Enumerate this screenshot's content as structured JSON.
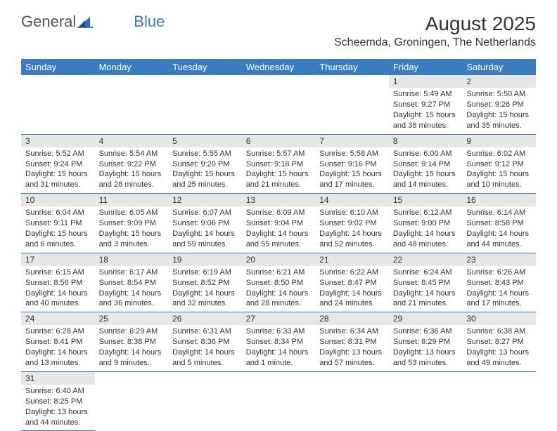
{
  "logo": {
    "text1": "General",
    "text2": "Blue"
  },
  "title": "August 2025",
  "subtitle": "Scheemda, Groningen, The Netherlands",
  "colors": {
    "header_bg": "#3b7bbf",
    "header_fg": "#ffffff",
    "daynum_bg": "#e6e6e6",
    "text": "#333333",
    "row_border": "#3b7bbf"
  },
  "day_headers": [
    "Sunday",
    "Monday",
    "Tuesday",
    "Wednesday",
    "Thursday",
    "Friday",
    "Saturday"
  ],
  "weeks": [
    [
      null,
      null,
      null,
      null,
      null,
      {
        "n": "1",
        "sr": "5:49 AM",
        "ss": "9:27 PM",
        "dl": "15 hours and 38 minutes."
      },
      {
        "n": "2",
        "sr": "5:50 AM",
        "ss": "9:26 PM",
        "dl": "15 hours and 35 minutes."
      }
    ],
    [
      {
        "n": "3",
        "sr": "5:52 AM",
        "ss": "9:24 PM",
        "dl": "15 hours and 31 minutes."
      },
      {
        "n": "4",
        "sr": "5:54 AM",
        "ss": "9:22 PM",
        "dl": "15 hours and 28 minutes."
      },
      {
        "n": "5",
        "sr": "5:55 AM",
        "ss": "9:20 PM",
        "dl": "15 hours and 25 minutes."
      },
      {
        "n": "6",
        "sr": "5:57 AM",
        "ss": "9:18 PM",
        "dl": "15 hours and 21 minutes."
      },
      {
        "n": "7",
        "sr": "5:58 AM",
        "ss": "9:16 PM",
        "dl": "15 hours and 17 minutes."
      },
      {
        "n": "8",
        "sr": "6:00 AM",
        "ss": "9:14 PM",
        "dl": "15 hours and 14 minutes."
      },
      {
        "n": "9",
        "sr": "6:02 AM",
        "ss": "9:12 PM",
        "dl": "15 hours and 10 minutes."
      }
    ],
    [
      {
        "n": "10",
        "sr": "6:04 AM",
        "ss": "9:11 PM",
        "dl": "15 hours and 6 minutes."
      },
      {
        "n": "11",
        "sr": "6:05 AM",
        "ss": "9:09 PM",
        "dl": "15 hours and 3 minutes."
      },
      {
        "n": "12",
        "sr": "6:07 AM",
        "ss": "9:06 PM",
        "dl": "14 hours and 59 minutes."
      },
      {
        "n": "13",
        "sr": "6:09 AM",
        "ss": "9:04 PM",
        "dl": "14 hours and 55 minutes."
      },
      {
        "n": "14",
        "sr": "6:10 AM",
        "ss": "9:02 PM",
        "dl": "14 hours and 52 minutes."
      },
      {
        "n": "15",
        "sr": "6:12 AM",
        "ss": "9:00 PM",
        "dl": "14 hours and 48 minutes."
      },
      {
        "n": "16",
        "sr": "6:14 AM",
        "ss": "8:58 PM",
        "dl": "14 hours and 44 minutes."
      }
    ],
    [
      {
        "n": "17",
        "sr": "6:15 AM",
        "ss": "8:56 PM",
        "dl": "14 hours and 40 minutes."
      },
      {
        "n": "18",
        "sr": "6:17 AM",
        "ss": "8:54 PM",
        "dl": "14 hours and 36 minutes."
      },
      {
        "n": "19",
        "sr": "6:19 AM",
        "ss": "8:52 PM",
        "dl": "14 hours and 32 minutes."
      },
      {
        "n": "20",
        "sr": "6:21 AM",
        "ss": "8:50 PM",
        "dl": "14 hours and 28 minutes."
      },
      {
        "n": "21",
        "sr": "6:22 AM",
        "ss": "8:47 PM",
        "dl": "14 hours and 24 minutes."
      },
      {
        "n": "22",
        "sr": "6:24 AM",
        "ss": "8:45 PM",
        "dl": "14 hours and 21 minutes."
      },
      {
        "n": "23",
        "sr": "6:26 AM",
        "ss": "8:43 PM",
        "dl": "14 hours and 17 minutes."
      }
    ],
    [
      {
        "n": "24",
        "sr": "6:28 AM",
        "ss": "8:41 PM",
        "dl": "14 hours and 13 minutes."
      },
      {
        "n": "25",
        "sr": "6:29 AM",
        "ss": "8:38 PM",
        "dl": "14 hours and 9 minutes."
      },
      {
        "n": "26",
        "sr": "6:31 AM",
        "ss": "8:36 PM",
        "dl": "14 hours and 5 minutes."
      },
      {
        "n": "27",
        "sr": "6:33 AM",
        "ss": "8:34 PM",
        "dl": "14 hours and 1 minute."
      },
      {
        "n": "28",
        "sr": "6:34 AM",
        "ss": "8:31 PM",
        "dl": "13 hours and 57 minutes."
      },
      {
        "n": "29",
        "sr": "6:36 AM",
        "ss": "8:29 PM",
        "dl": "13 hours and 53 minutes."
      },
      {
        "n": "30",
        "sr": "6:38 AM",
        "ss": "8:27 PM",
        "dl": "13 hours and 49 minutes."
      }
    ],
    [
      {
        "n": "31",
        "sr": "6:40 AM",
        "ss": "8:25 PM",
        "dl": "13 hours and 44 minutes."
      },
      null,
      null,
      null,
      null,
      null,
      null
    ]
  ],
  "labels": {
    "sunrise": "Sunrise: ",
    "sunset": "Sunset: ",
    "daylight": "Daylight: "
  }
}
